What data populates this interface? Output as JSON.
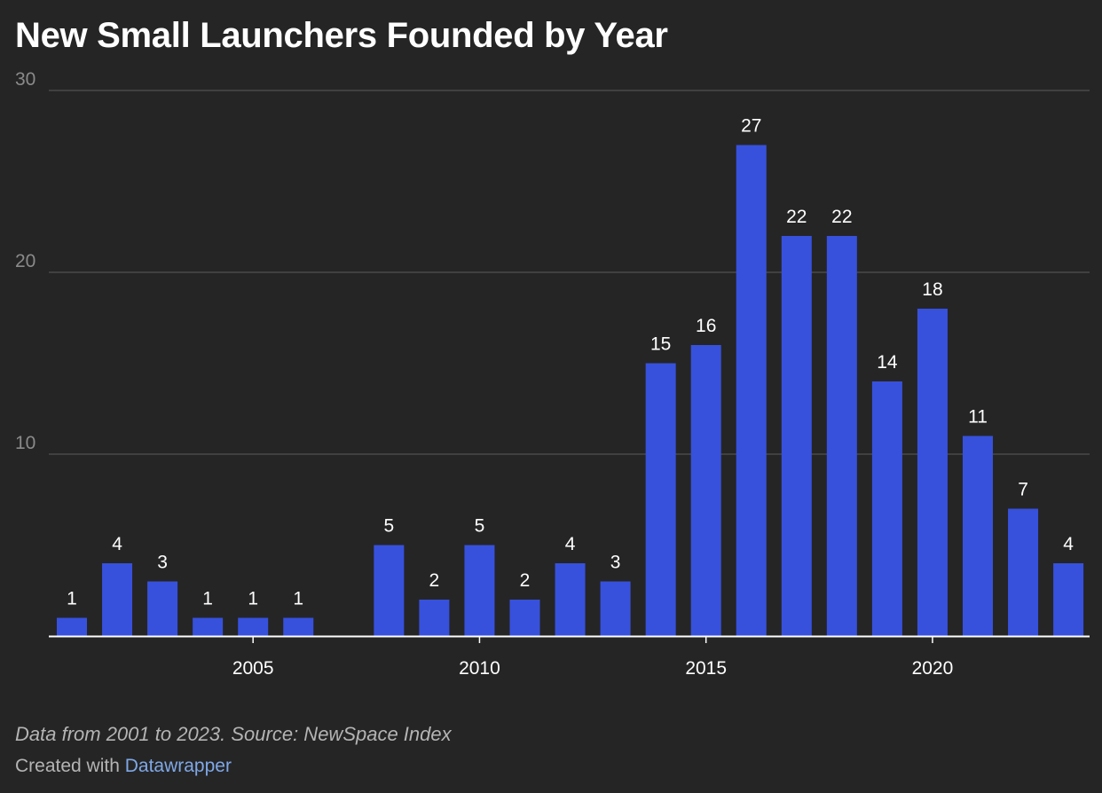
{
  "colors": {
    "background": "#252526",
    "bar": "#3751dc",
    "grid": "#4a4a4a",
    "axis": "#ffffff",
    "ytick": "#8a8a8a",
    "text": "#ffffff",
    "muted": "#b4b4b4",
    "link": "#7fa8e6"
  },
  "header": {
    "title": "New Small Launchers Founded by Year"
  },
  "footer": {
    "notes": "Data from 2001 to 2023. Source: NewSpace Index",
    "credit_prefix": "Created with ",
    "credit_link": "Datawrapper"
  },
  "chart_data": {
    "type": "bar",
    "title": "New Small Launchers Founded by Year",
    "xlabel": "",
    "ylabel": "",
    "years": [
      2001,
      2002,
      2003,
      2004,
      2005,
      2006,
      2007,
      2008,
      2009,
      2010,
      2011,
      2012,
      2013,
      2014,
      2015,
      2016,
      2017,
      2018,
      2019,
      2020,
      2021,
      2022,
      2023
    ],
    "values": [
      1,
      4,
      3,
      1,
      1,
      1,
      0,
      5,
      2,
      5,
      2,
      4,
      3,
      15,
      16,
      27,
      22,
      22,
      14,
      18,
      11,
      7,
      4
    ],
    "x_ticks": [
      "2005",
      "2010",
      "2015",
      "2020"
    ],
    "y_ticks": [
      "10",
      "20",
      "30"
    ],
    "ylim": [
      0,
      30
    ],
    "grid": true,
    "legend": "none"
  }
}
